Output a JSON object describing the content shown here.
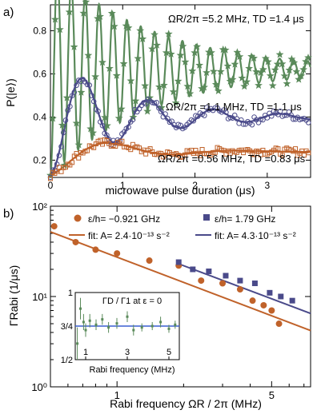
{
  "chart_data": [
    {
      "panel_label": "a)",
      "type": "scatter",
      "xlabel": "microwave pulse duration (μs)",
      "ylabel": "P(|e⟩)",
      "xlim": [
        0,
        3.6
      ],
      "ylim": [
        0.12,
        0.92
      ],
      "x_ticks": [
        "0",
        "1",
        "2",
        "3"
      ],
      "y_ticks": [
        "0.2",
        "0.4",
        "0.6",
        "0.8"
      ],
      "colors": {
        "green": "#5a8a5a",
        "purple": "#4a4a8a",
        "orange": "#c0622a"
      },
      "series": [
        {
          "name": "ΩR/2π =5.2 MHz, TD =1.4 μs",
          "marker": "star",
          "color": "#5a8a5a",
          "fit": {
            "offset": 0.62,
            "amp": 0.2,
            "freq": 5.2,
            "decay": 1.4,
            "start": 0.13
          }
        },
        {
          "name": "ΩR/2π =1.1 MHz, TD =1.1 μs",
          "marker": "circle",
          "color": "#4a4a8a",
          "fit": {
            "offset": 0.4,
            "amp": 0.27,
            "freq": 1.1,
            "decay": 1.1,
            "start": 0.13
          }
        },
        {
          "name": "ΩR/2π =0.56 MHz, TD =0.83 μs",
          "marker": "square",
          "color": "#c0622a",
          "fit": {
            "offset": 0.24,
            "amp": 0.11,
            "freq": 0.56,
            "decay": 0.83,
            "start": 0.13
          }
        }
      ]
    },
    {
      "panel_label": "b)",
      "type": "scatter",
      "xlabel": "Rabi frequency ΩR / 2π (MHz)",
      "ylabel": "ΓRabi (1/μs)",
      "xscale": "log",
      "yscale": "log",
      "xlim": [
        0.5,
        7.5
      ],
      "ylim": [
        1,
        100
      ],
      "x_ticks": [
        "1",
        "5"
      ],
      "y_ticks": [
        "10⁰",
        "10¹",
        "10²"
      ],
      "legend": "top-right",
      "series": [
        {
          "name": "ε/h= −0.921 GHz",
          "marker": "circle",
          "color": "#c0622a",
          "x": [
            0.52,
            0.65,
            0.8,
            1.0,
            1.4,
            1.9,
            2.4,
            3.0,
            3.6,
            4.1,
            4.6,
            5.0,
            5.4
          ],
          "y": [
            60,
            40,
            33,
            30,
            25,
            22,
            15,
            14,
            12,
            9,
            8,
            7,
            5
          ]
        },
        {
          "name": "ε/h= 1.79 GHz",
          "marker": "square",
          "color": "#4a4a8a",
          "x": [
            1.9,
            2.2,
            2.6,
            3.1,
            3.6,
            4.2,
            4.9,
            5.5,
            6.2
          ],
          "y": [
            24,
            20,
            19,
            17,
            15,
            14,
            11,
            10,
            9
          ]
        },
        {
          "name": "fit: A= 2.4·10⁻¹³ s⁻²",
          "line": true,
          "color": "#c0622a",
          "x": [
            0.5,
            7.5
          ],
          "y": [
            52,
            4.2
          ]
        },
        {
          "name": "fit: A= 4.3·10⁻¹³ s⁻²",
          "line": true,
          "color": "#4a4a8a",
          "x": [
            1.9,
            7.5
          ],
          "y": [
            23,
            6.5
          ]
        }
      ]
    },
    {
      "panel_label": "inset",
      "type": "scatter",
      "title": "ΓD / Γ1   at   ε = 0",
      "xlabel": "Rabi frequency (MHz)",
      "xlim": [
        0.5,
        5.5
      ],
      "ylim": [
        0.5,
        1.0
      ],
      "x_ticks": [
        "1",
        "3",
        "5"
      ],
      "y_ticks": [
        "1/2",
        "3/4",
        "1"
      ],
      "reference_line": 0.75,
      "x": [
        0.6,
        0.75,
        0.9,
        1.0,
        1.2,
        1.5,
        1.8,
        2.1,
        2.5,
        3.0,
        3.3,
        3.7,
        4.2,
        4.6,
        5.0,
        5.3
      ],
      "y": [
        0.62,
        0.88,
        0.78,
        0.72,
        0.79,
        0.76,
        0.8,
        0.74,
        0.77,
        0.82,
        0.72,
        0.74,
        0.75,
        0.78,
        0.73,
        0.76
      ],
      "err": [
        0.12,
        0.08,
        0.06,
        0.05,
        0.05,
        0.04,
        0.04,
        0.04,
        0.04,
        0.04,
        0.04,
        0.03,
        0.03,
        0.04,
        0.03,
        0.03
      ]
    }
  ]
}
